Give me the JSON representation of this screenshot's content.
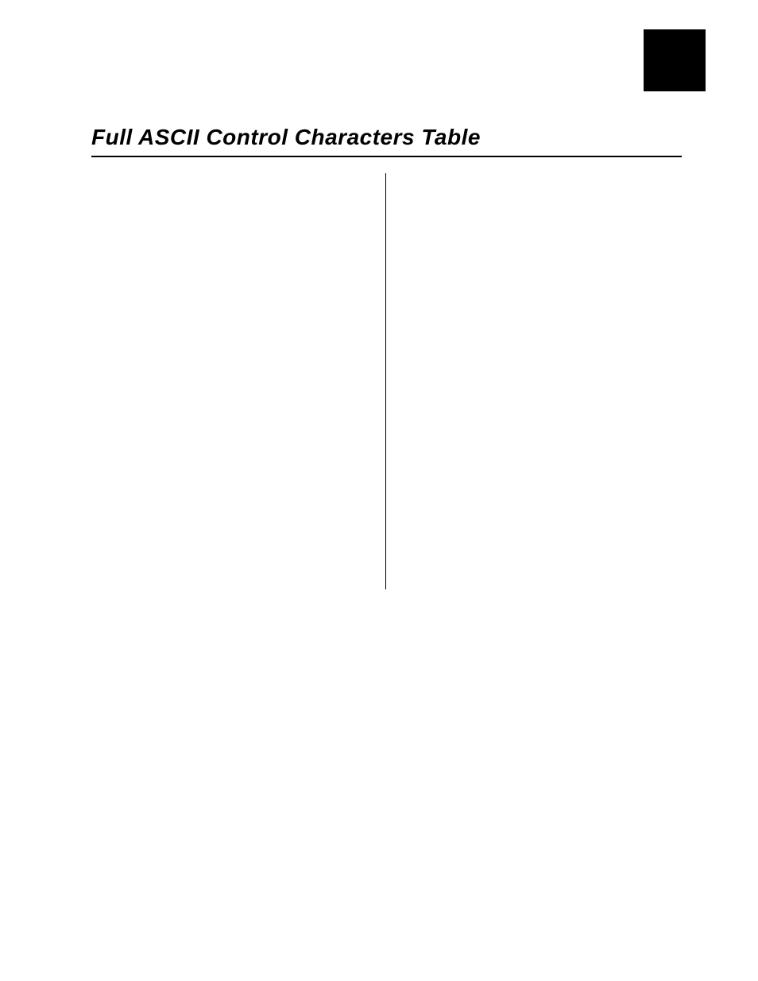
{
  "heading": {
    "title": "Full ASCII Control Characters Table"
  }
}
